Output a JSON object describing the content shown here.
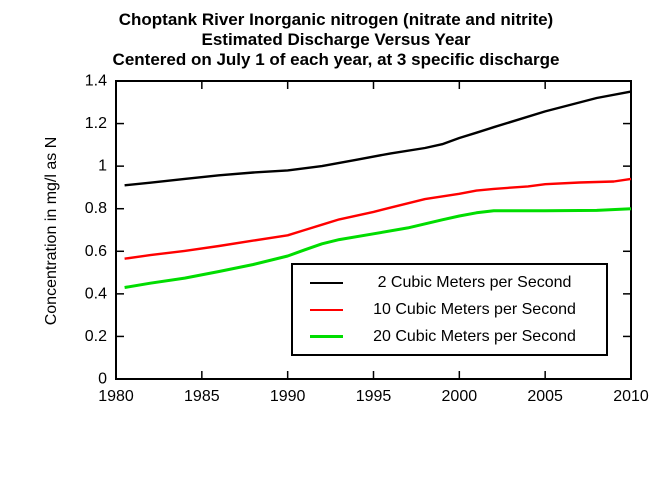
{
  "chart_data": {
    "type": "line",
    "title_lines": [
      "Choptank River Inorganic nitrogen (nitrate and nitrite)",
      "Estimated Discharge Versus Year",
      "Centered on July 1 of each year, at 3 specific discharge"
    ],
    "ylabel": "Concentration in mg/l as N",
    "xlabel": "",
    "xlim": [
      1980,
      2010
    ],
    "ylim": [
      0,
      1.4
    ],
    "x_ticks": {
      "values": [
        1980,
        1985,
        1990,
        1995,
        2000,
        2005,
        2010
      ],
      "labels": [
        "1980",
        "1985",
        "1990",
        "1995",
        "2000",
        "2005",
        "2010"
      ]
    },
    "y_ticks": {
      "values": [
        0,
        0.2,
        0.4,
        0.6,
        0.8,
        1.0,
        1.2,
        1.4
      ],
      "labels": [
        "0",
        "0.2",
        "0.4",
        "0.6",
        "0.8",
        "1",
        "1.2",
        "1.4"
      ]
    },
    "grid": false,
    "legend_position": "inside-bottom-right",
    "series": [
      {
        "name": "2 Cubic Meters per Second",
        "color": "#000000",
        "points": [
          [
            1980.5,
            0.91
          ],
          [
            1982,
            0.922
          ],
          [
            1984,
            0.94
          ],
          [
            1986,
            0.957
          ],
          [
            1988,
            0.97
          ],
          [
            1990,
            0.98
          ],
          [
            1992,
            1.0
          ],
          [
            1994,
            1.03
          ],
          [
            1996,
            1.06
          ],
          [
            1998,
            1.085
          ],
          [
            1999,
            1.103
          ],
          [
            2000,
            1.132
          ],
          [
            2001,
            1.157
          ],
          [
            2002,
            1.183
          ],
          [
            2005,
            1.257
          ],
          [
            2008,
            1.32
          ],
          [
            2010,
            1.35
          ]
        ]
      },
      {
        "name": "10 Cubic Meters per Second",
        "color": "#ff0000",
        "points": [
          [
            1980.5,
            0.565
          ],
          [
            1982,
            0.582
          ],
          [
            1984,
            0.602
          ],
          [
            1986,
            0.625
          ],
          [
            1988,
            0.65
          ],
          [
            1990,
            0.675
          ],
          [
            1991,
            0.7
          ],
          [
            1992,
            0.725
          ],
          [
            1993,
            0.75
          ],
          [
            1995,
            0.785
          ],
          [
            1996,
            0.805
          ],
          [
            1998,
            0.845
          ],
          [
            2000,
            0.87
          ],
          [
            2001,
            0.885
          ],
          [
            2002,
            0.893
          ],
          [
            2004,
            0.905
          ],
          [
            2005,
            0.915
          ],
          [
            2007,
            0.923
          ],
          [
            2009,
            0.928
          ],
          [
            2010,
            0.94
          ]
        ]
      },
      {
        "name": "20 Cubic Meters per Second",
        "color": "#00dd00",
        "points": [
          [
            1980.5,
            0.43
          ],
          [
            1982,
            0.45
          ],
          [
            1984,
            0.474
          ],
          [
            1986,
            0.505
          ],
          [
            1988,
            0.538
          ],
          [
            1990,
            0.578
          ],
          [
            1991,
            0.607
          ],
          [
            1992,
            0.635
          ],
          [
            1993,
            0.655
          ],
          [
            1995,
            0.682
          ],
          [
            1997,
            0.71
          ],
          [
            1999,
            0.748
          ],
          [
            2000,
            0.766
          ],
          [
            2001,
            0.781
          ],
          [
            2002,
            0.79
          ],
          [
            2005,
            0.79
          ],
          [
            2008,
            0.792
          ],
          [
            2010,
            0.8
          ]
        ]
      }
    ]
  }
}
